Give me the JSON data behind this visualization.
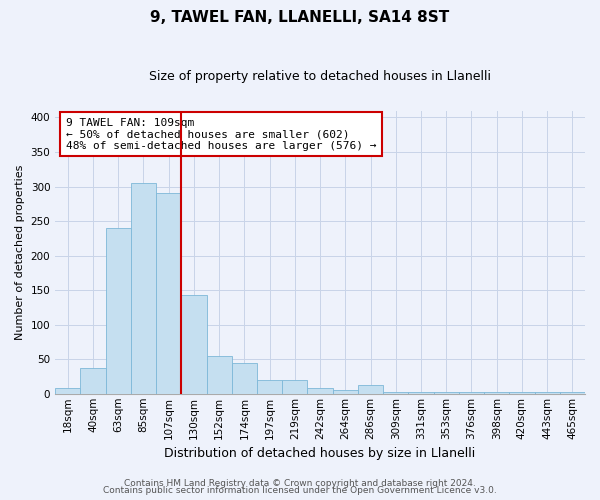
{
  "title": "9, TAWEL FAN, LLANELLI, SA14 8ST",
  "subtitle": "Size of property relative to detached houses in Llanelli",
  "xlabel": "Distribution of detached houses by size in Llanelli",
  "ylabel": "Number of detached properties",
  "bar_color": "#c5dff0",
  "bar_edge_color": "#7eb8d8",
  "bins": [
    "18sqm",
    "40sqm",
    "63sqm",
    "85sqm",
    "107sqm",
    "130sqm",
    "152sqm",
    "174sqm",
    "197sqm",
    "219sqm",
    "242sqm",
    "264sqm",
    "286sqm",
    "309sqm",
    "331sqm",
    "353sqm",
    "376sqm",
    "398sqm",
    "420sqm",
    "443sqm",
    "465sqm"
  ],
  "values": [
    8,
    37,
    240,
    305,
    290,
    143,
    55,
    44,
    20,
    20,
    9,
    5,
    13,
    2,
    2,
    2,
    2,
    2,
    2,
    2,
    2
  ],
  "vline_index": 4,
  "vline_color": "#cc0000",
  "annotation_line1": "9 TAWEL FAN: 109sqm",
  "annotation_line2": "← 50% of detached houses are smaller (602)",
  "annotation_line3": "48% of semi-detached houses are larger (576) →",
  "ylim": [
    0,
    410
  ],
  "yticks": [
    0,
    50,
    100,
    150,
    200,
    250,
    300,
    350,
    400
  ],
  "footer1": "Contains HM Land Registry data © Crown copyright and database right 2024.",
  "footer2": "Contains public sector information licensed under the Open Government Licence v3.0.",
  "bg_color": "#eef2fb",
  "plot_bg_color": "#eef2fb",
  "grid_color": "#c8d4e8",
  "title_fontsize": 11,
  "subtitle_fontsize": 9,
  "ylabel_fontsize": 8,
  "xlabel_fontsize": 9,
  "tick_fontsize": 7.5,
  "annot_fontsize": 8
}
